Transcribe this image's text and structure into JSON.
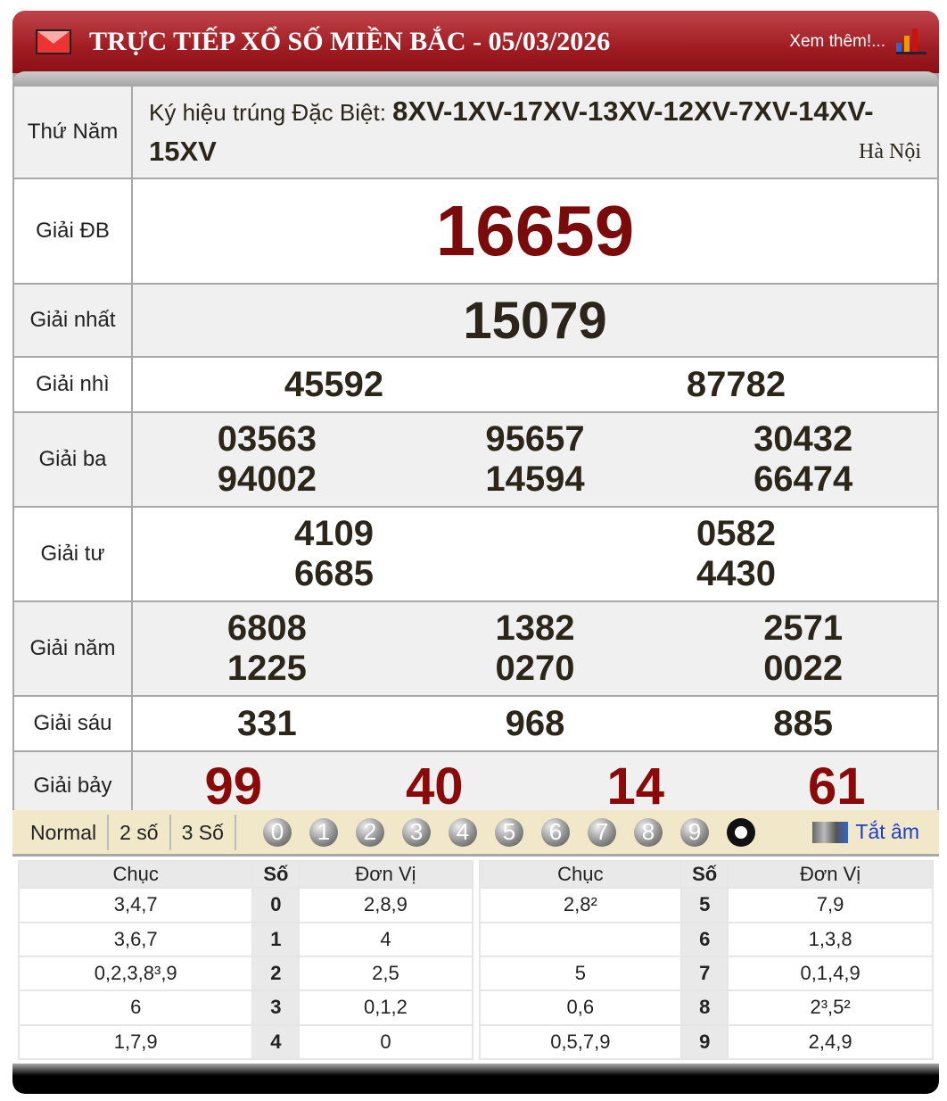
{
  "header": {
    "title": "TRỰC TIẾP XỔ SỐ MIỀN BẮC - 05/03/2026",
    "more": "Xem thêm!...",
    "accent": "#a01c22"
  },
  "info": {
    "day": "Thứ Năm",
    "symbol_label": "Ký hiệu trúng Đặc Biệt:",
    "symbols": "8XV-1XV-17XV-13XV-12XV-7XV-14XV-15XV",
    "location": "Hà Nội"
  },
  "prizes": [
    {
      "label": "Giải ĐB",
      "numbers": [
        "16659"
      ]
    },
    {
      "label": "Giải nhất",
      "numbers": [
        "15079"
      ]
    },
    {
      "label": "Giải nhì",
      "numbers": [
        "45592",
        "87782"
      ]
    },
    {
      "label": "Giải ba",
      "numbers": [
        "03563",
        "95657",
        "30432",
        "94002",
        "14594",
        "66474"
      ]
    },
    {
      "label": "Giải tư",
      "numbers": [
        "4109",
        "0582",
        "6685",
        "4430"
      ]
    },
    {
      "label": "Giải năm",
      "numbers": [
        "6808",
        "1382",
        "2571",
        "1225",
        "0270",
        "0022"
      ]
    },
    {
      "label": "Giải sáu",
      "numbers": [
        "331",
        "968",
        "885"
      ]
    },
    {
      "label": "Giải bảy",
      "numbers": [
        "99",
        "40",
        "14",
        "61"
      ]
    }
  ],
  "toolbar": {
    "modes": [
      "Normal",
      "2 số",
      "3 Số"
    ],
    "digits": [
      "0",
      "1",
      "2",
      "3",
      "4",
      "5",
      "6",
      "7",
      "8",
      "9"
    ],
    "mute": "Tắt âm"
  },
  "loto": {
    "headers": [
      "Chục",
      "Số",
      "Đơn Vị"
    ],
    "left": [
      [
        "3,4,7",
        "0",
        "2,8,9"
      ],
      [
        "3,6,7",
        "1",
        "4"
      ],
      [
        "0,2,3,8³,9",
        "2",
        "2,5"
      ],
      [
        "6",
        "3",
        "0,1,2"
      ],
      [
        "1,7,9",
        "4",
        "0"
      ]
    ],
    "right": [
      [
        "2,8²",
        "5",
        "7,9"
      ],
      [
        "",
        "6",
        "1,3,8"
      ],
      [
        "5",
        "7",
        "0,1,4,9"
      ],
      [
        "0,6",
        "8",
        "2³,5²"
      ],
      [
        "0,5,7,9",
        "9",
        "2,4,9"
      ]
    ]
  }
}
